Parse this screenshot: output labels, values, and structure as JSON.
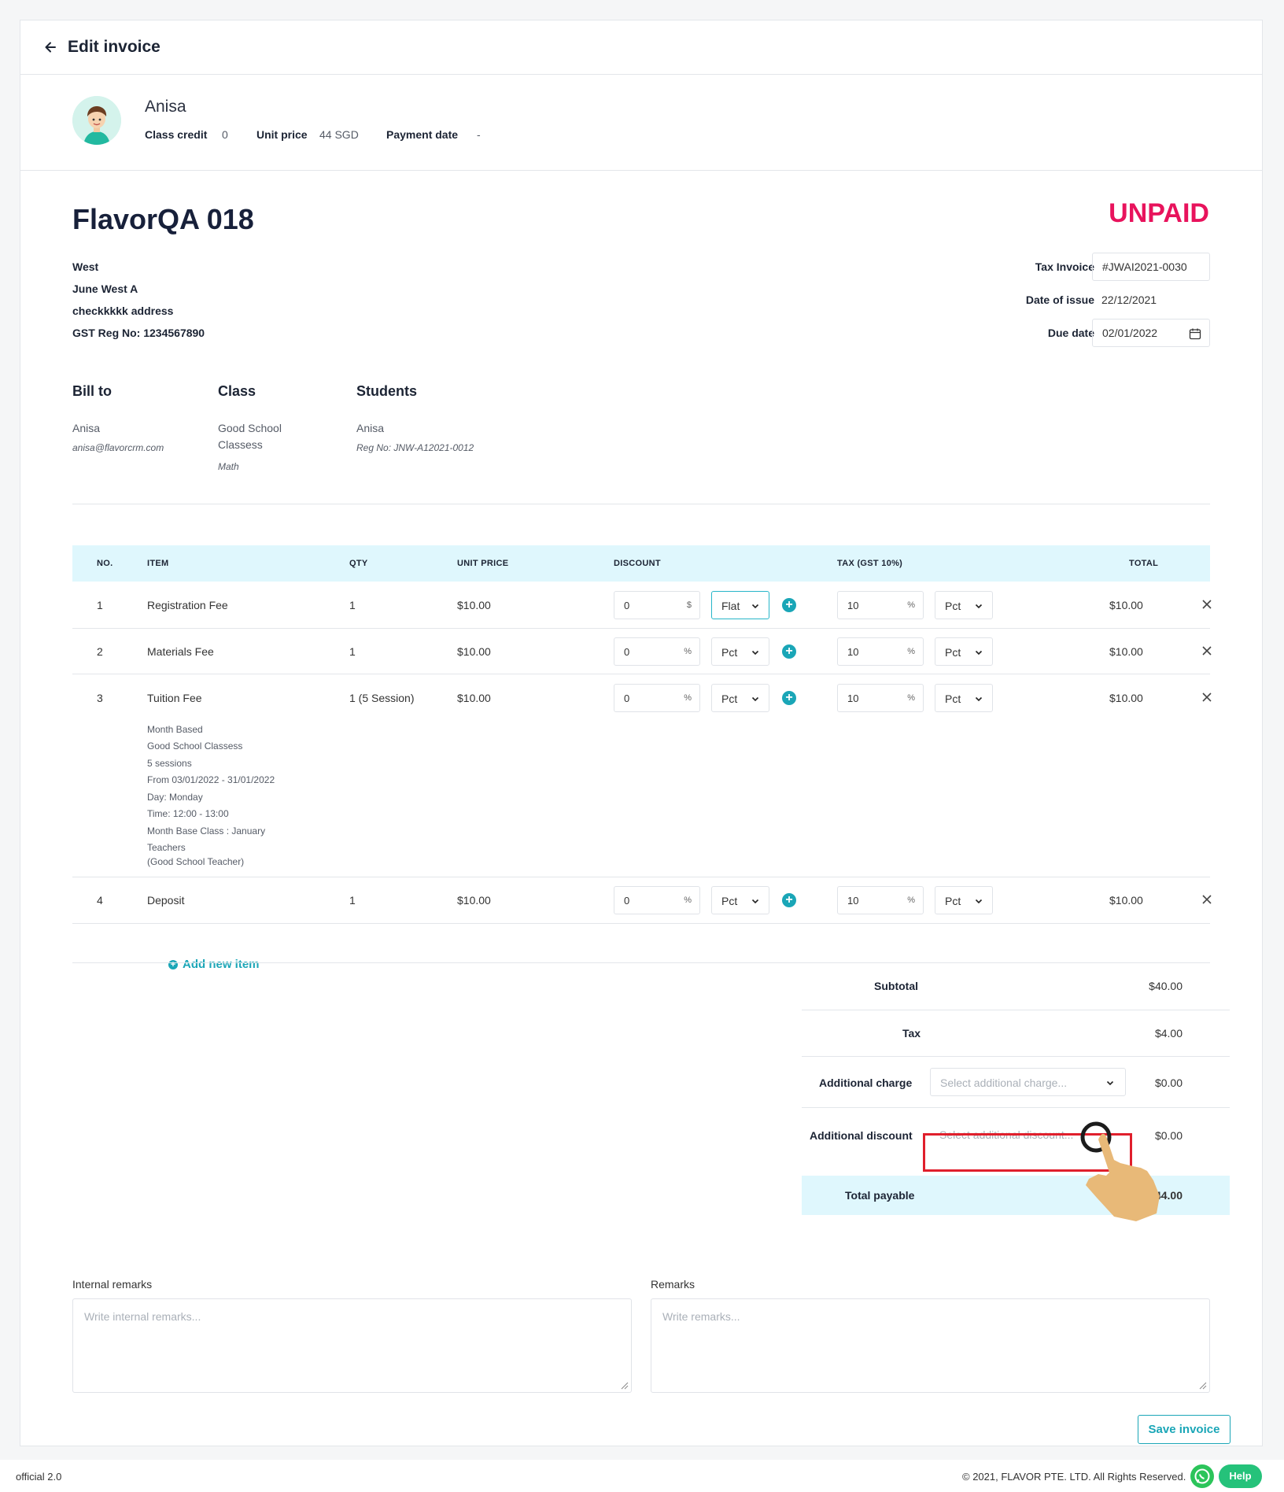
{
  "header": {
    "title": "Edit invoice"
  },
  "student": {
    "name": "Anisa",
    "class_credit_label": "Class credit",
    "class_credit": "0",
    "unit_price_label": "Unit price",
    "unit_price": "44 SGD",
    "payment_date_label": "Payment date",
    "payment_date": "-"
  },
  "invoice": {
    "title": "FlavorQA 018",
    "status": "UNPAID",
    "status_color": "#e8135c",
    "address": [
      "West",
      "June West A",
      "checkkkkk address",
      "GST Reg No: 1234567890"
    ],
    "tax_invoice_label": "Tax Invoice",
    "tax_invoice": "#JWAI2021-0030",
    "date_of_issue_label": "Date of issue",
    "date_of_issue": "22/12/2021",
    "due_date_label": "Due date",
    "due_date": "02/01/2022"
  },
  "bill_to": {
    "heading": "Bill to",
    "name": "Anisa",
    "email": "anisa@flavorcrm.com"
  },
  "class_info": {
    "heading": "Class",
    "name_line1": "Good School",
    "name_line2": "Classess",
    "subject": "Math"
  },
  "students": {
    "heading": "Students",
    "name": "Anisa",
    "reg_no": "Reg No: JNW-A12021-0012"
  },
  "table": {
    "headers": {
      "no": "NO.",
      "item": "ITEM",
      "qty": "QTY",
      "unit_price": "UNIT PRICE",
      "discount": "DISCOUNT",
      "tax": "TAX (GST 10%)",
      "total": "TOTAL"
    },
    "rows": [
      {
        "no": "1",
        "item": "Registration Fee",
        "qty": "1",
        "unit_price": "$10.00",
        "discount": "0",
        "discount_unit": "$",
        "discount_type": "Flat",
        "tax": "10",
        "tax_unit": "%",
        "tax_type": "Pct",
        "total": "$10.00"
      },
      {
        "no": "2",
        "item": "Materials Fee",
        "qty": "1",
        "unit_price": "$10.00",
        "discount": "0",
        "discount_unit": "%",
        "discount_type": "Pct",
        "tax": "10",
        "tax_unit": "%",
        "tax_type": "Pct",
        "total": "$10.00"
      },
      {
        "no": "3",
        "item": "Tuition Fee",
        "qty": "1 (5 Session)",
        "unit_price": "$10.00",
        "discount": "0",
        "discount_unit": "%",
        "discount_type": "Pct",
        "tax": "10",
        "tax_unit": "%",
        "tax_type": "Pct",
        "total": "$10.00",
        "details": [
          "Month Based",
          "Good School Classess",
          "5 sessions",
          "From 03/01/2022 - 31/01/2022",
          "Day: Monday",
          "Time: 12:00 - 13:00",
          "Month Base Class : January",
          "Teachers",
          "(Good School Teacher)"
        ]
      },
      {
        "no": "4",
        "item": "Deposit",
        "qty": "1",
        "unit_price": "$10.00",
        "discount": "0",
        "discount_unit": "%",
        "discount_type": "Pct",
        "tax": "10",
        "tax_unit": "%",
        "tax_type": "Pct",
        "total": "$10.00"
      }
    ],
    "add_item": "Add new item"
  },
  "summary": {
    "subtotal_label": "Subtotal",
    "subtotal": "$40.00",
    "tax_label": "Tax",
    "tax": "$4.00",
    "additional_charge_label": "Additional charge",
    "additional_charge_placeholder": "Select additional charge...",
    "additional_charge": "$0.00",
    "additional_discount_label": "Additional discount",
    "additional_discount_placeholder": "Select additional discount...",
    "additional_discount": "$0.00",
    "total_label": "Total payable",
    "total": "$44.00"
  },
  "remarks": {
    "internal_label": "Internal remarks",
    "internal_placeholder": "Write internal remarks...",
    "label": "Remarks",
    "placeholder": "Write remarks..."
  },
  "actions": {
    "save": "Save invoice"
  },
  "footer": {
    "version": "official 2.0",
    "copyright": "© 2021, FLAVOR PTE. LTD. All Rights Reserved.",
    "help": "Help"
  },
  "colors": {
    "accent": "#1aa6b7",
    "table_header_bg": "#dff7fd",
    "highlight": "#e01f2c"
  }
}
